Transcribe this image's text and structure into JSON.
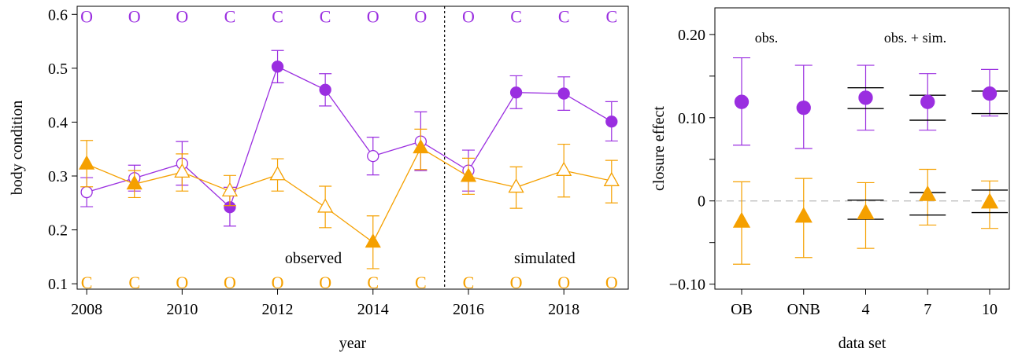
{
  "colors": {
    "purple": "#9a2ee0",
    "orange": "#f5a000",
    "black": "#000000",
    "ref": "#bbbbbb"
  },
  "chart_data": [
    {
      "type": "scatter",
      "xlabel": "year",
      "ylabel": "body condition",
      "xlim": [
        2007.8,
        2019.35
      ],
      "ylim": [
        0.09,
        0.615
      ],
      "x_ticks": [
        2008,
        2010,
        2012,
        2014,
        2016,
        2018
      ],
      "y_ticks": [
        0.1,
        0.2,
        0.3,
        0.4,
        0.5,
        0.6
      ],
      "grid": false,
      "divider_x": 2015.5,
      "region_labels": [
        {
          "text": "observed",
          "x": 2012.75,
          "y": 0.148
        },
        {
          "text": "simulated",
          "x": 2017.6,
          "y": 0.148
        }
      ],
      "series": [
        {
          "color": "purple",
          "marker": "circle",
          "points": [
            {
              "x": 2008,
              "y": 0.27,
              "lo": 0.243,
              "hi": 0.297,
              "filled": false
            },
            {
              "x": 2009,
              "y": 0.296,
              "lo": 0.272,
              "hi": 0.32,
              "filled": false
            },
            {
              "x": 2010,
              "y": 0.323,
              "lo": 0.283,
              "hi": 0.364,
              "filled": false
            },
            {
              "x": 2011,
              "y": 0.242,
              "lo": 0.207,
              "hi": 0.279,
              "filled": true
            },
            {
              "x": 2012,
              "y": 0.503,
              "lo": 0.473,
              "hi": 0.533,
              "filled": true
            },
            {
              "x": 2013,
              "y": 0.46,
              "lo": 0.43,
              "hi": 0.49,
              "filled": true
            },
            {
              "x": 2014,
              "y": 0.337,
              "lo": 0.302,
              "hi": 0.372,
              "filled": false
            },
            {
              "x": 2015,
              "y": 0.364,
              "lo": 0.31,
              "hi": 0.419,
              "filled": false
            },
            {
              "x": 2016,
              "y": 0.31,
              "lo": 0.272,
              "hi": 0.348,
              "filled": false
            },
            {
              "x": 2017,
              "y": 0.455,
              "lo": 0.425,
              "hi": 0.486,
              "filled": true
            },
            {
              "x": 2018,
              "y": 0.453,
              "lo": 0.422,
              "hi": 0.484,
              "filled": true
            },
            {
              "x": 2019,
              "y": 0.401,
              "lo": 0.365,
              "hi": 0.438,
              "filled": true
            }
          ]
        },
        {
          "color": "orange",
          "marker": "triangle",
          "points": [
            {
              "x": 2008,
              "y": 0.322,
              "lo": 0.28,
              "hi": 0.366,
              "filled": true
            },
            {
              "x": 2009,
              "y": 0.285,
              "lo": 0.26,
              "hi": 0.31,
              "filled": true
            },
            {
              "x": 2010,
              "y": 0.307,
              "lo": 0.272,
              "hi": 0.341,
              "filled": false
            },
            {
              "x": 2011,
              "y": 0.272,
              "lo": 0.245,
              "hi": 0.301,
              "filled": false
            },
            {
              "x": 2012,
              "y": 0.302,
              "lo": 0.272,
              "hi": 0.332,
              "filled": false
            },
            {
              "x": 2013,
              "y": 0.242,
              "lo": 0.204,
              "hi": 0.281,
              "filled": false
            },
            {
              "x": 2014,
              "y": 0.177,
              "lo": 0.128,
              "hi": 0.226,
              "filled": true
            },
            {
              "x": 2015,
              "y": 0.352,
              "lo": 0.312,
              "hi": 0.387,
              "filled": true
            },
            {
              "x": 2016,
              "y": 0.299,
              "lo": 0.266,
              "hi": 0.333,
              "filled": true
            },
            {
              "x": 2017,
              "y": 0.279,
              "lo": 0.24,
              "hi": 0.317,
              "filled": false
            },
            {
              "x": 2018,
              "y": 0.31,
              "lo": 0.261,
              "hi": 0.359,
              "filled": false
            },
            {
              "x": 2019,
              "y": 0.291,
              "lo": 0.25,
              "hi": 0.329,
              "filled": false
            }
          ]
        }
      ],
      "top_letters": {
        "color": "purple",
        "y": 0.597,
        "x": [
          2008,
          2009,
          2010,
          2011,
          2012,
          2013,
          2014,
          2015,
          2016,
          2017,
          2018,
          2019
        ],
        "text": [
          "O",
          "O",
          "O",
          "C",
          "C",
          "C",
          "O",
          "O",
          "O",
          "C",
          "C",
          "C"
        ]
      },
      "bottom_letters": {
        "color": "orange",
        "y": 0.103,
        "x": [
          2008,
          2009,
          2010,
          2011,
          2012,
          2013,
          2014,
          2015,
          2016,
          2017,
          2018,
          2019
        ],
        "text": [
          "C",
          "C",
          "O",
          "O",
          "O",
          "O",
          "C",
          "C",
          "C",
          "O",
          "O",
          "O"
        ]
      }
    },
    {
      "type": "scatter",
      "xlabel": "data set",
      "ylabel": "closure effect",
      "categories": [
        "OB",
        "ONB",
        "4",
        "7",
        "10"
      ],
      "ylim": [
        -0.106,
        0.232
      ],
      "y_ticks": [
        -0.1,
        0,
        0.1,
        0.2
      ],
      "y_tick_labels": [
        "−0.10",
        "0",
        "0.10",
        "0.20"
      ],
      "grid": false,
      "reference_line": 0,
      "group_labels": [
        {
          "text": "obs.",
          "x": 1.4,
          "y": 0.197
        },
        {
          "text": "obs. + sim.",
          "x": 3.8,
          "y": 0.197
        }
      ],
      "series": [
        {
          "color": "purple",
          "marker": "circle",
          "filled": true,
          "points": [
            {
              "x": 1,
              "y": 0.119,
              "lo": 0.067,
              "hi": 0.172
            },
            {
              "x": 2,
              "y": 0.112,
              "lo": 0.063,
              "hi": 0.163
            },
            {
              "x": 3,
              "y": 0.124,
              "lo": 0.085,
              "hi": 0.163
            },
            {
              "x": 4,
              "y": 0.119,
              "lo": 0.085,
              "hi": 0.153
            },
            {
              "x": 5,
              "y": 0.129,
              "lo": 0.102,
              "hi": 0.158
            }
          ],
          "black_bars": [
            {
              "x": 3,
              "lo": 0.111,
              "hi": 0.136
            },
            {
              "x": 4,
              "lo": 0.097,
              "hi": 0.127
            },
            {
              "x": 5,
              "lo": 0.105,
              "hi": 0.132
            }
          ]
        },
        {
          "color": "orange",
          "marker": "triangle",
          "filled": true,
          "points": [
            {
              "x": 1,
              "y": -0.025,
              "lo": -0.076,
              "hi": 0.023
            },
            {
              "x": 2,
              "y": -0.019,
              "lo": -0.068,
              "hi": 0.027
            },
            {
              "x": 3,
              "y": -0.015,
              "lo": -0.057,
              "hi": 0.022
            },
            {
              "x": 4,
              "y": 0.007,
              "lo": -0.029,
              "hi": 0.038
            },
            {
              "x": 5,
              "y": -0.002,
              "lo": -0.033,
              "hi": 0.024
            }
          ],
          "black_bars": [
            {
              "x": 3,
              "lo": -0.022,
              "hi": 0.001
            },
            {
              "x": 4,
              "lo": -0.017,
              "hi": 0.01
            },
            {
              "x": 5,
              "lo": -0.014,
              "hi": 0.013
            }
          ]
        }
      ]
    }
  ]
}
